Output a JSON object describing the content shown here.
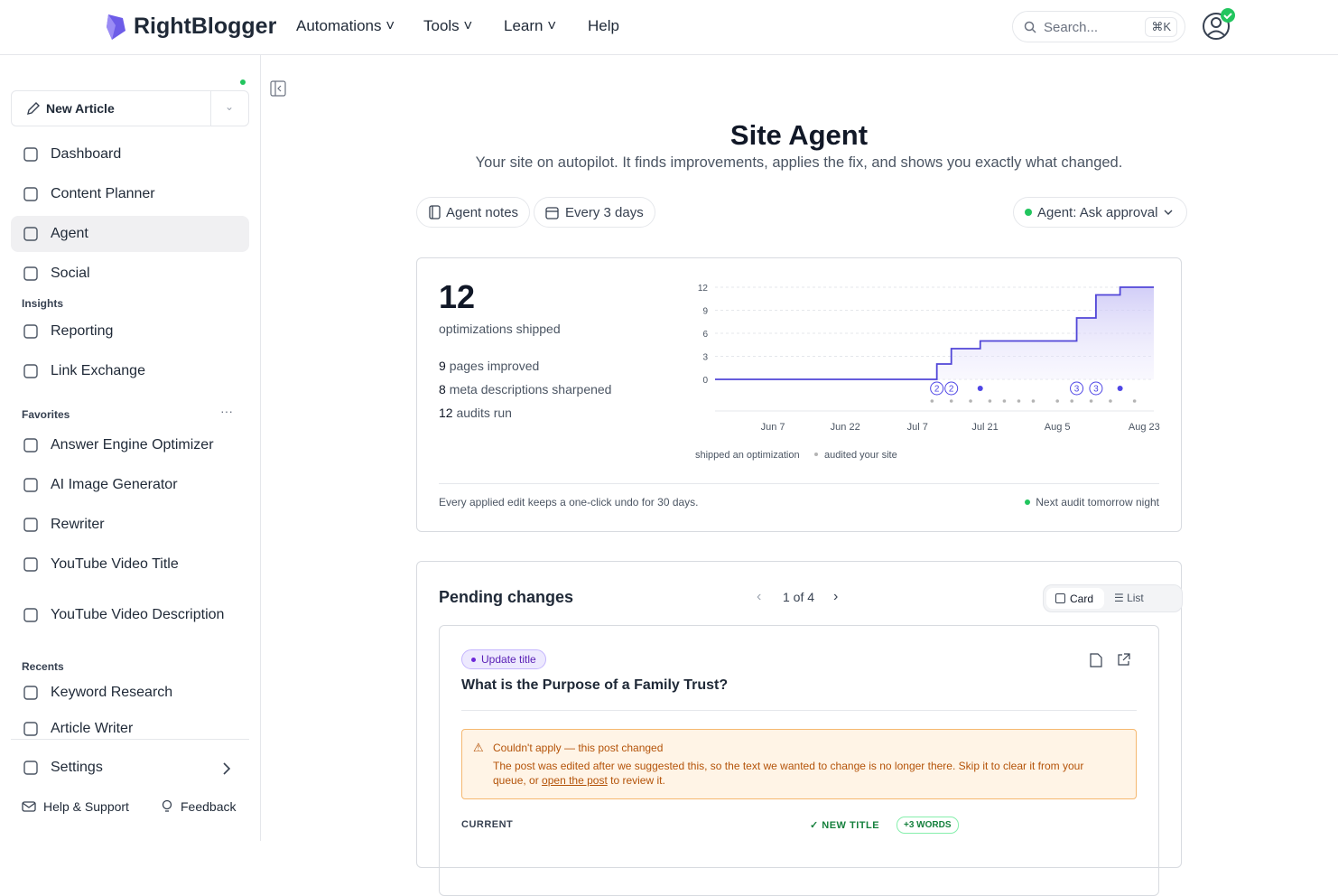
{
  "header": {
    "logo": "RightBlogger",
    "nav": [
      "Automations",
      "Tools",
      "Learn",
      "Help"
    ],
    "search": "Search...",
    "shortcut": "⌘K"
  },
  "sidebar": {
    "new_article": "New Article",
    "main": [
      "Dashboard",
      "Content Planner",
      "Agent",
      "Social"
    ],
    "insights": {
      "title": "Insights",
      "items": [
        "Reporting",
        "Link Exchange"
      ]
    },
    "favorites": {
      "title": "Favorites",
      "items": [
        "Answer Engine Optimizer",
        "AI Image Generator",
        "Rewriter",
        "YouTube Video Title",
        "YouTube Video Description"
      ]
    },
    "recents": {
      "title": "Recents",
      "items": [
        "Keyword Research",
        "Article Writer"
      ]
    },
    "settings": "Settings",
    "help": "Help & Support",
    "feedback": "Feedback"
  },
  "main": {
    "title": "Site Agent",
    "subtitle": "Your site on autopilot. It finds improvements, applies the fix, and shows you exactly what changed.",
    "buttons": [
      "Agent notes",
      "Every 3 days"
    ],
    "agent_mode": "Agent: Ask approval",
    "stats": {
      "total": {
        "value": 12,
        "label": "optimizations shipped"
      },
      "items": [
        {
          "value": 9,
          "label": "pages improved"
        },
        {
          "value": 8,
          "label": "meta descriptions sharpened"
        },
        {
          "value": 12,
          "label": "audits run"
        }
      ],
      "footer": "Every applied edit keeps a one-click undo for 30 days.",
      "next_audit": "Next audit tomorrow night"
    },
    "pending": {
      "title": "Pending changes",
      "pager": "1 of 4",
      "views": [
        "Card",
        "List"
      ],
      "badge": "Update title",
      "post_title": "What is the Purpose of a Family Trust?",
      "warning": {
        "title": "Couldn't apply — this post changed",
        "text": "The post was edited after we suggested this, so the text we wanted to change is no longer there. Skip it to clear it from your queue, or ",
        "link": "open the post",
        "text_end": " to review it."
      },
      "current": "CURRENT",
      "new_title": "NEW TITLE",
      "words": "+3 WORDS"
    }
  },
  "chart_data": {
    "type": "line",
    "xlim": [
      "May 26",
      "Aug 25"
    ],
    "xticks": [
      "Jun 7",
      "Jun 22",
      "Jul 7",
      "Jul 21",
      "Aug 5",
      "Aug 23"
    ],
    "ylim": [
      0,
      12
    ],
    "yticks": [
      0,
      3,
      6,
      9,
      12
    ],
    "grid": true,
    "series": [
      {
        "color": "#5146d8",
        "step": true,
        "fill": true,
        "x": [
          "May 26",
          "Jul 11",
          "Jul 14",
          "Jul 20",
          "Aug 9",
          "Aug 13",
          "Aug 18",
          "Aug 25"
        ],
        "values": [
          0,
          2,
          4,
          5,
          8,
          11,
          12,
          12
        ]
      },
      {
        "name": "shipped an optimization",
        "color": "#4f46e5",
        "x": [
          "Jul 11",
          "Jul 14",
          "Jul 20",
          "Aug 9",
          "Aug 13",
          "Aug 18"
        ],
        "values": [
          2,
          2,
          1,
          3,
          3,
          1
        ]
      },
      {
        "name": "audited your site",
        "color": "#b4b4b4",
        "x": [
          "Jul 10",
          "Jul 14",
          "Jul 18",
          "Jul 22",
          "Jul 25",
          "Jul 28",
          "Jul 31",
          "Aug 5",
          "Aug 8",
          "Aug 12",
          "Aug 16",
          "Aug 21"
        ],
        "values": [
          1,
          1,
          1,
          1,
          1,
          1,
          1,
          1,
          1,
          1,
          1,
          1
        ]
      }
    ]
  }
}
